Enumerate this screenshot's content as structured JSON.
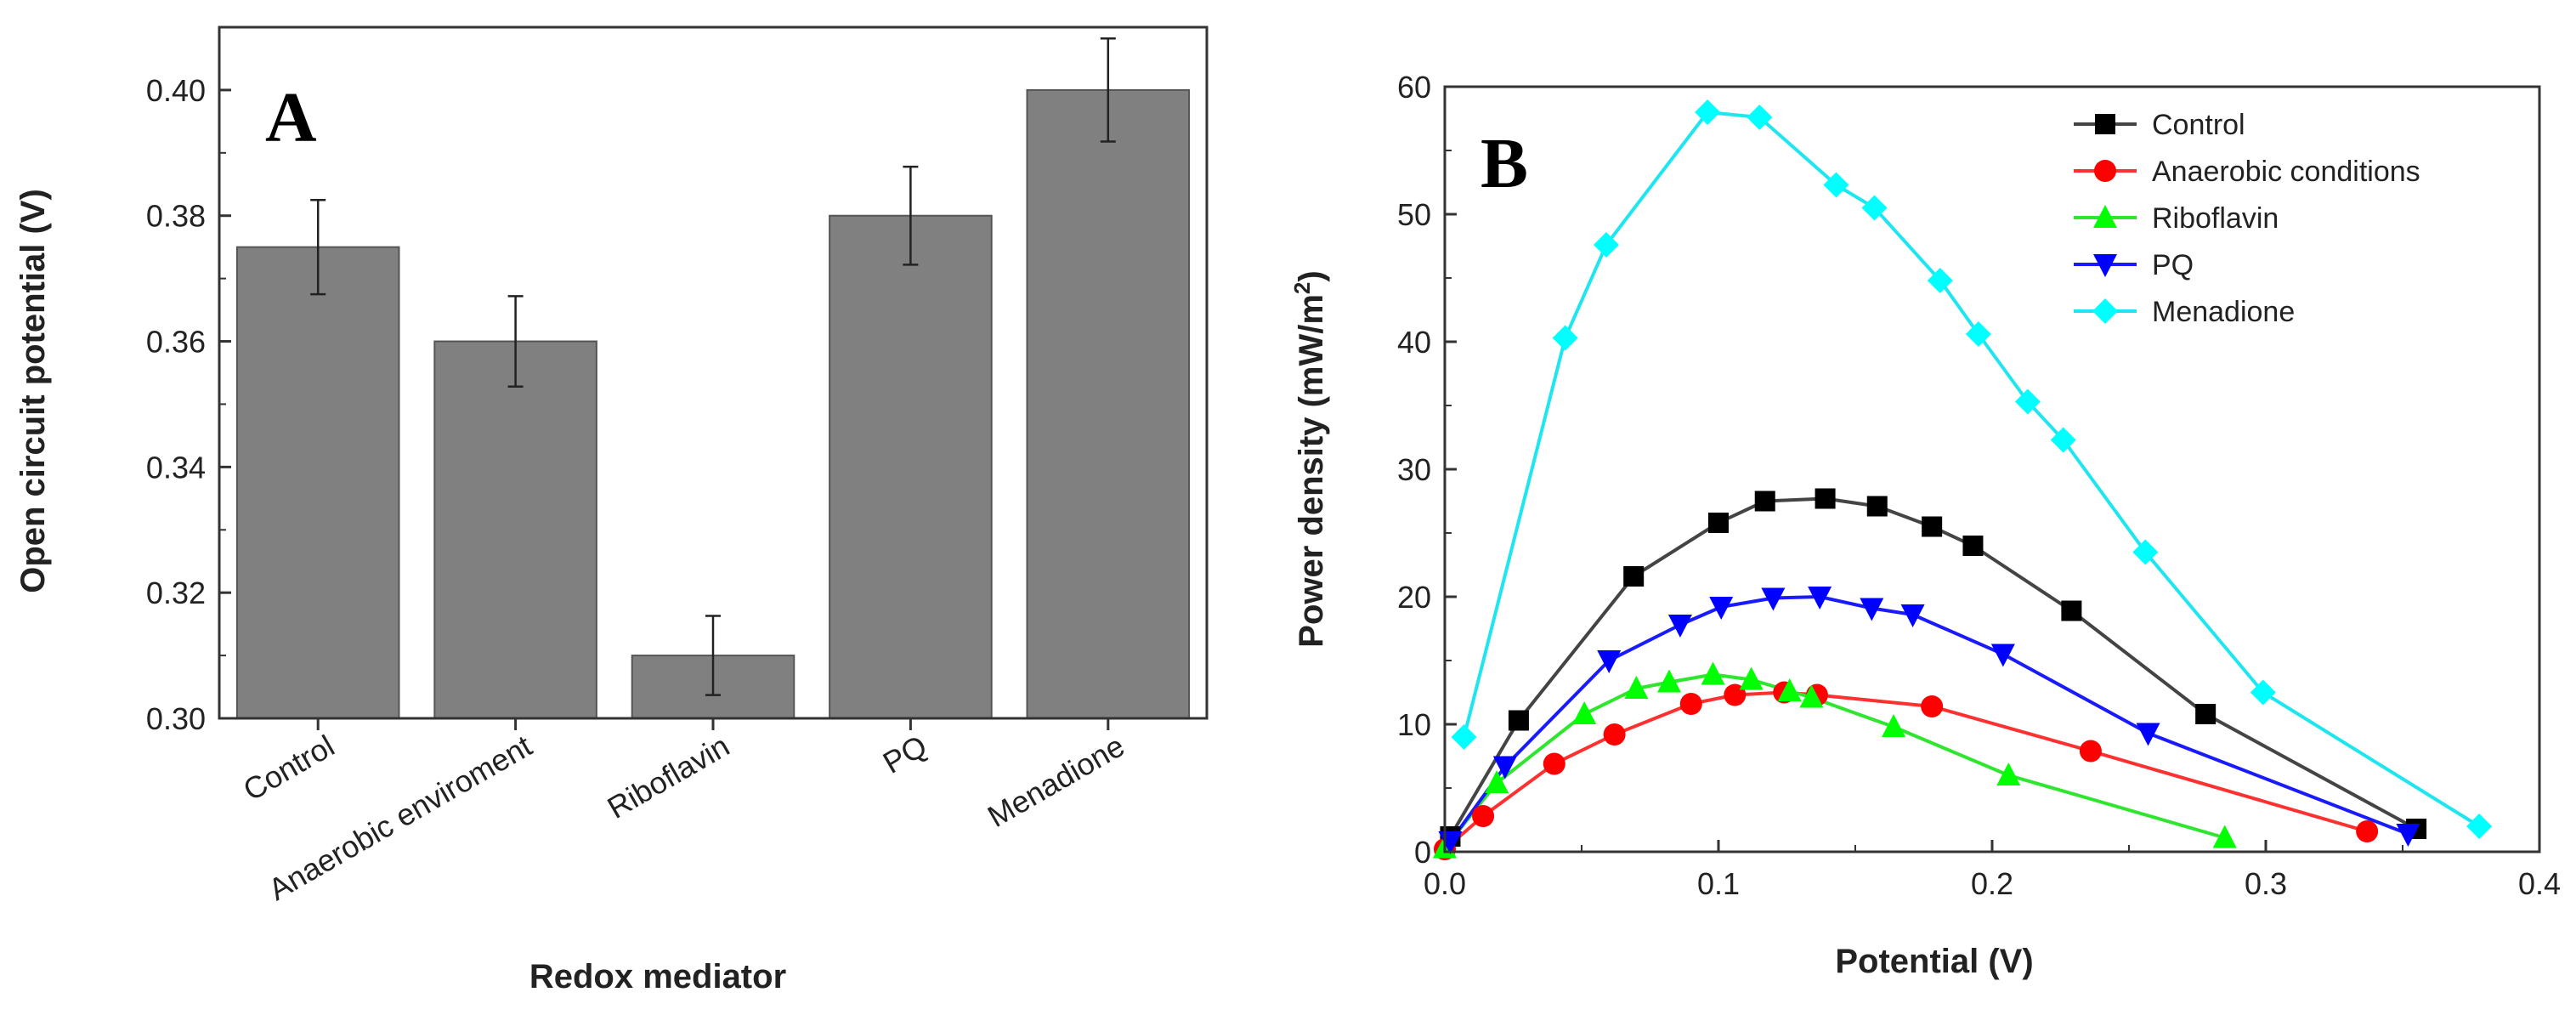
{
  "chart_data": [
    {
      "type": "bar",
      "panel_label": "A",
      "title": "",
      "xlabel": "Redox mediator",
      "ylabel": "Open circuit potential (V)",
      "ylim": [
        0.3,
        0.41
      ],
      "yticks": [
        "0.30",
        "0.32",
        "0.34",
        "0.36",
        "0.38",
        "0.40"
      ],
      "bar_color": "#808080",
      "categories": [
        "Control",
        "Anaerobic enviroment",
        "Riboflavin",
        "PQ",
        "Menadione"
      ],
      "values": [
        0.375,
        0.36,
        0.31,
        0.38,
        0.4
      ],
      "errors": [
        0.0075,
        0.0072,
        0.0063,
        0.0078,
        0.0082
      ]
    },
    {
      "type": "line",
      "panel_label": "B",
      "title": "",
      "xlabel": "Potential (V)",
      "ylabel_main": "Power density (mW/m",
      "ylabel_sup": "2",
      "ylabel_end": ")",
      "xlim": [
        0.0,
        0.4
      ],
      "ylim": [
        0,
        60
      ],
      "xticks": [
        "0.0",
        "0.1",
        "0.2",
        "0.3",
        "0.4"
      ],
      "yticks": [
        "0",
        "10",
        "20",
        "30",
        "40",
        "50",
        "60"
      ],
      "legend_position": "top-right",
      "series": [
        {
          "name": "Control",
          "color": "#000000",
          "line_color": "#444444",
          "marker": "square",
          "x": [
            0.002,
            0.027,
            0.069,
            0.1,
            0.117,
            0.139,
            0.158,
            0.178,
            0.193,
            0.229,
            0.278,
            0.355
          ],
          "y": [
            1.2,
            10.3,
            21.6,
            25.8,
            27.5,
            27.7,
            27.1,
            25.5,
            24.0,
            18.9,
            10.8,
            1.8
          ]
        },
        {
          "name": "Anaerobic conditions",
          "color": "#ff0000",
          "line_color": "#ff3030",
          "marker": "circle",
          "x": [
            0.0,
            0.014,
            0.04,
            0.062,
            0.09,
            0.106,
            0.124,
            0.136,
            0.178,
            0.236,
            0.337
          ],
          "y": [
            0.2,
            2.8,
            6.9,
            9.2,
            11.6,
            12.3,
            12.5,
            12.3,
            11.4,
            7.9,
            1.6
          ]
        },
        {
          "name": "Riboflavin",
          "color": "#00ff00",
          "line_color": "#2ee62e",
          "marker": "triangle-up",
          "x": [
            0.0,
            0.019,
            0.051,
            0.07,
            0.082,
            0.098,
            0.112,
            0.126,
            0.134,
            0.164,
            0.206,
            0.285
          ],
          "y": [
            0.3,
            5.4,
            10.8,
            12.8,
            13.3,
            13.9,
            13.5,
            12.6,
            12.1,
            9.8,
            6.0,
            1.1
          ]
        },
        {
          "name": "PQ",
          "color": "#0000ff",
          "line_color": "#1a1aff",
          "marker": "triangle-down",
          "x": [
            0.002,
            0.022,
            0.06,
            0.086,
            0.101,
            0.12,
            0.137,
            0.156,
            0.171,
            0.204,
            0.257,
            0.352
          ],
          "y": [
            0.8,
            6.7,
            15.0,
            17.8,
            19.2,
            19.9,
            20.0,
            19.1,
            18.6,
            15.5,
            9.3,
            1.4
          ]
        },
        {
          "name": "Menadione",
          "color": "#00ffff",
          "line_color": "#1ee6f0",
          "marker": "diamond",
          "x": [
            0.007,
            0.044,
            0.059,
            0.096,
            0.115,
            0.143,
            0.157,
            0.181,
            0.195,
            0.213,
            0.226,
            0.256,
            0.299,
            0.378
          ],
          "y": [
            9.0,
            40.3,
            47.6,
            58.0,
            57.6,
            52.3,
            50.5,
            44.8,
            40.6,
            35.3,
            32.3,
            23.5,
            12.5,
            2.0
          ]
        }
      ]
    }
  ]
}
